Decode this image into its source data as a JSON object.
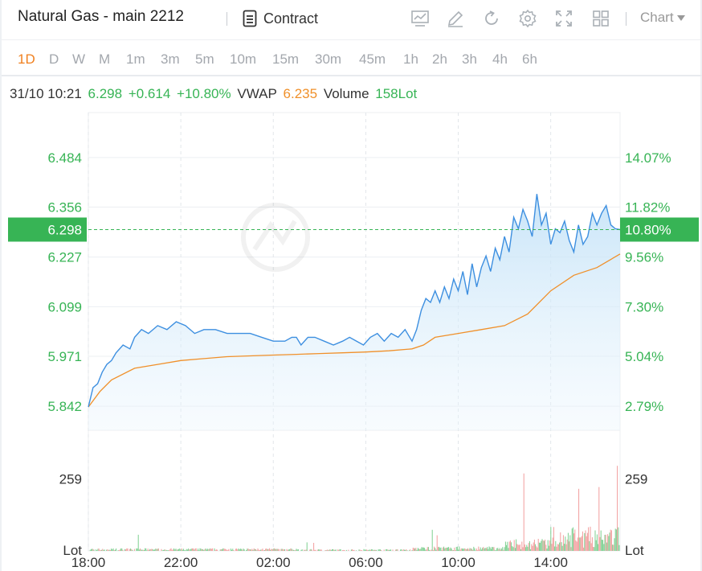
{
  "header": {
    "title": "Natural Gas - main 2212",
    "contract_label": "Contract",
    "chart_dropdown": "Chart"
  },
  "periods": [
    {
      "label": "1D",
      "active": true
    },
    {
      "label": "D",
      "active": false
    },
    {
      "label": "W",
      "active": false
    },
    {
      "label": "M",
      "active": false
    },
    {
      "label": "1m",
      "active": false
    },
    {
      "label": "3m",
      "active": false
    },
    {
      "label": "5m",
      "active": false
    },
    {
      "label": "10m",
      "active": false
    },
    {
      "label": "15m",
      "active": false
    },
    {
      "label": "30m",
      "active": false
    },
    {
      "label": "45m",
      "active": false
    },
    {
      "label": "1h",
      "active": false
    },
    {
      "label": "2h",
      "active": false
    },
    {
      "label": "3h",
      "active": false
    },
    {
      "label": "4h",
      "active": false
    },
    {
      "label": "6h",
      "active": false
    }
  ],
  "info": {
    "datetime": "31/10 10:21",
    "price": "6.298",
    "change": "+0.614",
    "change_pct": "+10.80%",
    "vwap_label": "VWAP",
    "vwap_value": "6.235",
    "volume_label": "Volume",
    "volume_value": "158Lot"
  },
  "colors": {
    "up": "#37b455",
    "down": "#f06a6a",
    "vwap": "#f0902a",
    "price_line": "#3d8fe0",
    "grid": "#eceff2",
    "active_period": "#f0801f"
  },
  "chart_data": {
    "type": "line",
    "price_axis_left": [
      "6.484",
      "6.356",
      "6.227",
      "6.099",
      "5.971",
      "5.842"
    ],
    "price_axis_right": [
      "14.07%",
      "11.82%",
      "9.56%",
      "7.30%",
      "5.04%",
      "2.79%"
    ],
    "current_price_tag": "6.298",
    "current_pct_tag": "10.80%",
    "price_range": [
      5.78,
      6.6
    ],
    "x_ticks": [
      "18:00",
      "22:00",
      "02:00",
      "06:00",
      "10:00",
      "14:00"
    ],
    "x_range_hours": [
      0,
      23
    ],
    "volume_axis_label": "259",
    "volume_axis_unit": "Lot",
    "volume_max": 420,
    "series": [
      {
        "name": "Price",
        "x": [
          0,
          0.2,
          0.4,
          0.6,
          0.8,
          1.0,
          1.2,
          1.5,
          1.8,
          2.0,
          2.3,
          2.6,
          3.0,
          3.4,
          3.8,
          4.2,
          4.6,
          5.0,
          5.5,
          6.0,
          6.5,
          7.0,
          7.5,
          8.0,
          8.5,
          8.8,
          9.0,
          9.2,
          9.5,
          9.8,
          10.2,
          10.6,
          11.0,
          11.3,
          11.6,
          11.9,
          12.2,
          12.5,
          12.8,
          13.1,
          13.4,
          13.7,
          14.0,
          14.2,
          14.4,
          14.6,
          14.8,
          15.0,
          15.2,
          15.4,
          15.6,
          15.8,
          16.0,
          16.2,
          16.4,
          16.6,
          16.8,
          17.0,
          17.2,
          17.4,
          17.6,
          17.8,
          18.0,
          18.2,
          18.4,
          18.6,
          18.8,
          19.0,
          19.2,
          19.4,
          19.6,
          19.8,
          20.0,
          20.2,
          20.4,
          20.6,
          20.8,
          21.0,
          21.2,
          21.4,
          21.6,
          21.8,
          22.0,
          22.2,
          22.4,
          22.6,
          22.8,
          23.0
        ],
        "values": [
          5.84,
          5.89,
          5.9,
          5.93,
          5.95,
          5.96,
          5.98,
          6.0,
          5.99,
          6.02,
          6.04,
          6.03,
          6.05,
          6.04,
          6.06,
          6.05,
          6.03,
          6.04,
          6.04,
          6.03,
          6.03,
          6.03,
          6.02,
          6.01,
          6.01,
          6.02,
          6.02,
          6.0,
          6.02,
          6.02,
          6.01,
          6.0,
          6.01,
          6.02,
          6.01,
          6.0,
          6.02,
          6.03,
          6.01,
          6.03,
          6.02,
          6.04,
          6.01,
          6.04,
          6.09,
          6.12,
          6.11,
          6.14,
          6.11,
          6.15,
          6.12,
          6.17,
          6.14,
          6.19,
          6.13,
          6.21,
          6.15,
          6.2,
          6.23,
          6.19,
          6.25,
          6.22,
          6.28,
          6.24,
          6.33,
          6.3,
          6.35,
          6.32,
          6.28,
          6.39,
          6.31,
          6.34,
          6.26,
          6.3,
          6.29,
          6.32,
          6.27,
          6.24,
          6.31,
          6.26,
          6.28,
          6.34,
          6.31,
          6.34,
          6.36,
          6.31,
          6.3,
          6.298
        ]
      },
      {
        "name": "VWAP",
        "x": [
          0,
          0.5,
          1.0,
          2.0,
          3.0,
          4.0,
          5.0,
          6.0,
          7.0,
          8.0,
          9.0,
          10.0,
          11.0,
          12.0,
          13.0,
          14.0,
          14.5,
          15.0,
          16.0,
          17.0,
          18.0,
          19.0,
          20.0,
          21.0,
          22.0,
          23.0
        ],
        "values": [
          5.84,
          5.88,
          5.91,
          5.94,
          5.95,
          5.96,
          5.965,
          5.97,
          5.972,
          5.974,
          5.976,
          5.978,
          5.98,
          5.982,
          5.985,
          5.99,
          6.0,
          6.02,
          6.03,
          6.04,
          6.05,
          6.08,
          6.14,
          6.18,
          6.2,
          6.235
        ]
      }
    ]
  }
}
